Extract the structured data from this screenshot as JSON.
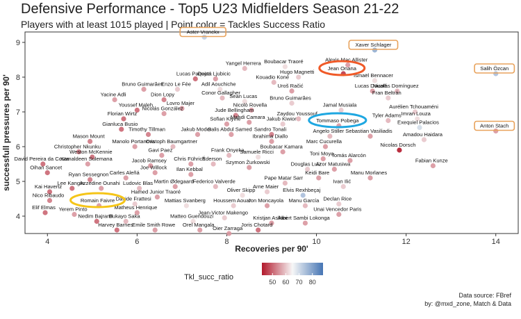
{
  "header": {
    "title": "Defensive Performance - Top5 U23 Midfielders Season 21-22",
    "subtitle": "Players with at least 1015 played | Point color = Tackles Success Ratio"
  },
  "caption": {
    "line1": "Data source: FBref",
    "line2": "by: @mxd_zone, Match & Data"
  },
  "colors": {
    "low": "#b2182b",
    "mid": "#f7f7f7",
    "high": "#4575b4",
    "orange_highlight": "#e8a25b",
    "red_circle": "#f05a28",
    "blue_circle": "#1ea7e1",
    "yellow_circle": "#f5c518"
  },
  "chart_data": {
    "type": "scatter",
    "title": "Defensive Performance - Top5 U23 Midfielders Season 21-22",
    "subtitle": "Players with at least 1015 played | Point color = Tackles Success Ratio",
    "xlabel": "Recoveries per 90'",
    "ylabel": "successfull pressures per 90'",
    "xlim": [
      3.5,
      14.5
    ],
    "ylim": [
      3.5,
      9.3
    ],
    "xticks": [
      4,
      6,
      8,
      10,
      12,
      14
    ],
    "yticks": [
      4,
      5,
      6,
      7,
      8,
      9
    ],
    "grid": false,
    "color_legend": {
      "title": "Tkl_succ_ratio",
      "ticks": [
        50,
        60,
        70,
        80
      ],
      "range": [
        42,
        88
      ],
      "position": "bottom"
    },
    "points": [
      {
        "label": "Aster Vranckx",
        "x": 7.5,
        "y": 9.15,
        "c": 72,
        "highlight": "box"
      },
      {
        "label": "Xaver Schlager",
        "x": 11.3,
        "y": 8.78,
        "c": 78,
        "highlight": "box"
      },
      {
        "label": "Alexis Mac Allister",
        "x": 10.7,
        "y": 8.35,
        "c": 55
      },
      {
        "label": "Yangel Herrera",
        "x": 8.4,
        "y": 8.25,
        "c": 58
      },
      {
        "label": "Boubacar Traoré",
        "x": 9.3,
        "y": 8.3,
        "c": 62
      },
      {
        "label": "Jean Onana",
        "x": 10.6,
        "y": 8.1,
        "c": 45,
        "highlight": "red-circle"
      },
      {
        "label": "Hugo Magnetti",
        "x": 9.6,
        "y": 8.0,
        "c": 60
      },
      {
        "label": "Ismaël Bennacer",
        "x": 11.3,
        "y": 7.9,
        "c": 62
      },
      {
        "label": "Salih Özcan",
        "x": 14.0,
        "y": 8.1,
        "c": 75,
        "highlight": "box"
      },
      {
        "label": "Lucas Paquetá",
        "x": 7.3,
        "y": 7.95,
        "c": 50
      },
      {
        "label": "Dejan Ljubicic",
        "x": 7.75,
        "y": 7.95,
        "c": 55
      },
      {
        "label": "Kouadio Koné",
        "x": 9.05,
        "y": 7.85,
        "c": 58
      },
      {
        "label": "Bruno Guimarães",
        "x": 6.15,
        "y": 7.65,
        "c": 55
      },
      {
        "label": "Enzo Le Fée",
        "x": 6.9,
        "y": 7.65,
        "c": 60
      },
      {
        "label": "Adil Aouchiche",
        "x": 7.85,
        "y": 7.65,
        "c": 62
      },
      {
        "label": "Uroš Račić",
        "x": 9.45,
        "y": 7.6,
        "c": 55
      },
      {
        "label": "Lucas Douath",
        "x": 11.25,
        "y": 7.6,
        "c": 55
      },
      {
        "label": "Nicolás Domínguez",
        "x": 11.8,
        "y": 7.6,
        "c": 58
      },
      {
        "label": "Fran Beltrán",
        "x": 11.6,
        "y": 7.4,
        "c": 60
      },
      {
        "label": "Yacine Adli",
        "x": 5.5,
        "y": 7.35,
        "c": 55
      },
      {
        "label": "Dion Lopy",
        "x": 6.6,
        "y": 7.35,
        "c": 52
      },
      {
        "label": "Conor Gallagher",
        "x": 7.9,
        "y": 7.4,
        "c": 58
      },
      {
        "label": "Sean Lucas",
        "x": 8.4,
        "y": 7.3,
        "c": 62
      },
      {
        "label": "Lovro Majer",
        "x": 7.0,
        "y": 7.1,
        "c": 55
      },
      {
        "label": "Bruno Guimarães",
        "x": 9.45,
        "y": 7.25,
        "c": 60
      },
      {
        "label": "Youssef Maleh",
        "x": 6.0,
        "y": 7.05,
        "c": 50
      },
      {
        "label": "Nicolò Rovella",
        "x": 8.55,
        "y": 7.05,
        "c": 55
      },
      {
        "label": "Jamal Musiala",
        "x": 10.55,
        "y": 7.05,
        "c": 60
      },
      {
        "label": "Jude Bellingham",
        "x": 8.2,
        "y": 6.9,
        "c": 52
      },
      {
        "label": "Aurélien Tchouaméni",
        "x": 12.2,
        "y": 7.0,
        "c": 60
      },
      {
        "label": "Florian Wirtz",
        "x": 5.7,
        "y": 6.8,
        "c": 50
      },
      {
        "label": "Nicolás González",
        "x": 6.6,
        "y": 6.95,
        "c": 55
      },
      {
        "label": "Zaydou Youssouf",
        "x": 9.6,
        "y": 6.8,
        "c": 58
      },
      {
        "label": "Tyler Adams",
        "x": 11.6,
        "y": 6.75,
        "c": 58
      },
      {
        "label": "Imran Louza",
        "x": 12.25,
        "y": 6.8,
        "c": 62
      },
      {
        "label": "Mahdi Camara",
        "x": 8.5,
        "y": 6.7,
        "c": 55
      },
      {
        "label": "Jakub Kiwior",
        "x": 9.25,
        "y": 6.65,
        "c": 60
      },
      {
        "label": "Sofian Kiyine",
        "x": 8.0,
        "y": 6.65,
        "c": 55
      },
      {
        "label": "Tommaso Pobega",
        "x": 10.5,
        "y": 6.6,
        "c": 55,
        "highlight": "blue-circle"
      },
      {
        "label": "Exequiel Palacios",
        "x": 12.3,
        "y": 6.55,
        "c": 70
      },
      {
        "label": "Anton Stach",
        "x": 14.0,
        "y": 6.45,
        "c": 55,
        "highlight": "box"
      },
      {
        "label": "Gianluca Busio",
        "x": 5.65,
        "y": 6.5,
        "c": 50
      },
      {
        "label": "Timothy Tillman",
        "x": 6.25,
        "y": 6.35,
        "c": 52
      },
      {
        "label": "Jakub Moder",
        "x": 7.35,
        "y": 6.35,
        "c": 55
      },
      {
        "label": "Salis Abdul Samed",
        "x": 8.1,
        "y": 6.35,
        "c": 55
      },
      {
        "label": "Sandro Tonali",
        "x": 9.0,
        "y": 6.35,
        "c": 52
      },
      {
        "label": "Angelo Stiller",
        "x": 10.3,
        "y": 6.3,
        "c": 58
      },
      {
        "label": "Sebastian Vasiliadis",
        "x": 11.2,
        "y": 6.3,
        "c": 55
      },
      {
        "label": "Amadou Haidara",
        "x": 12.4,
        "y": 6.2,
        "c": 60
      },
      {
        "label": "Mason Mount",
        "x": 4.95,
        "y": 6.15,
        "c": 52
      },
      {
        "label": "Ibrahima Diallo",
        "x": 9.0,
        "y": 6.15,
        "c": 55
      },
      {
        "label": "Manolo Portanova",
        "x": 5.95,
        "y": 6.0,
        "c": 55
      },
      {
        "label": "Cristoph Baumgartner",
        "x": 6.8,
        "y": 6.0,
        "c": 58
      },
      {
        "label": "Marc Cucurella",
        "x": 10.2,
        "y": 6.0,
        "c": 55
      },
      {
        "label": "Nicolas Dorsch",
        "x": 11.85,
        "y": 5.9,
        "c": 42
      },
      {
        "label": "Christopher Nkunku",
        "x": 4.7,
        "y": 5.85,
        "c": 52
      },
      {
        "label": "Boubacar Kamara",
        "x": 9.25,
        "y": 5.85,
        "c": 55
      },
      {
        "label": "Weston McKennie",
        "x": 5.0,
        "y": 5.7,
        "c": 50
      },
      {
        "label": "Gavi Paez",
        "x": 6.55,
        "y": 5.75,
        "c": 55
      },
      {
        "label": "Frank Onyeka",
        "x": 8.05,
        "y": 5.75,
        "c": 58
      },
      {
        "label": "Samuele Ricci",
        "x": 8.7,
        "y": 5.7,
        "c": 62
      },
      {
        "label": "Toni Moya",
        "x": 10.15,
        "y": 5.65,
        "c": 55
      },
      {
        "label": "Tomás Alarcón",
        "x": 10.75,
        "y": 5.6,
        "c": 55
      },
      {
        "label": "Kamaldeen Sulemana",
        "x": 4.9,
        "y": 5.5,
        "c": 55
      },
      {
        "label": "David Pereira da Costa",
        "x": 3.9,
        "y": 5.5,
        "c": 50
      },
      {
        "label": "Chris Führich",
        "x": 7.2,
        "y": 5.5,
        "c": 55
      },
      {
        "label": "Éderson",
        "x": 7.7,
        "y": 5.5,
        "c": 58
      },
      {
        "label": "Szymon Żurkowski",
        "x": 8.5,
        "y": 5.4,
        "c": 55
      },
      {
        "label": "Azor Matusiwa",
        "x": 10.4,
        "y": 5.35,
        "c": 55
      },
      {
        "label": "Fabian Kunze",
        "x": 12.6,
        "y": 5.45,
        "c": 55
      },
      {
        "label": "Jacob Ramsey",
        "x": 6.3,
        "y": 5.45,
        "c": 55
      },
      {
        "label": "Douglas Luiz",
        "x": 9.8,
        "y": 5.35,
        "c": 60
      },
      {
        "label": "Oihan Sancet",
        "x": 4.0,
        "y": 5.25,
        "c": 50
      },
      {
        "label": "Joe Willock",
        "x": 6.4,
        "y": 5.25,
        "c": 55
      },
      {
        "label": "Ilan Kebbal",
        "x": 7.2,
        "y": 5.2,
        "c": 55
      },
      {
        "label": "Ryan Sessegnon",
        "x": 4.95,
        "y": 5.05,
        "c": 52
      },
      {
        "label": "Carles Aleñá",
        "x": 5.75,
        "y": 5.1,
        "c": 55
      },
      {
        "label": "Keidi Bare",
        "x": 10.05,
        "y": 5.1,
        "c": 55
      },
      {
        "label": "Manu Morlanes",
        "x": 11.2,
        "y": 5.1,
        "c": 55
      },
      {
        "label": "Pape Matar Sarr",
        "x": 9.3,
        "y": 4.95,
        "c": 58
      },
      {
        "label": "Ivan Ilić",
        "x": 10.6,
        "y": 4.85,
        "c": 60
      },
      {
        "label": "Azzedine Ounahi",
        "x": 5.2,
        "y": 4.8,
        "c": 55
      },
      {
        "label": "Ludovic Blas",
        "x": 6.05,
        "y": 4.8,
        "c": 58
      },
      {
        "label": "Lee Kangin",
        "x": 4.55,
        "y": 4.8,
        "c": 50
      },
      {
        "label": "Martin Ødegaard",
        "x": 6.85,
        "y": 4.85,
        "c": 55
      },
      {
        "label": "Federico Valverde",
        "x": 7.75,
        "y": 4.85,
        "c": 58
      },
      {
        "label": "Arne Maier",
        "x": 8.9,
        "y": 4.7,
        "c": 60
      },
      {
        "label": "Kai Havertz",
        "x": 4.05,
        "y": 4.7,
        "c": 50
      },
      {
        "label": "Oliver Skipp",
        "x": 8.35,
        "y": 4.6,
        "c": 62
      },
      {
        "label": "Elvis Rexhbeçaj",
        "x": 9.7,
        "y": 4.6,
        "c": 75
      },
      {
        "label": "Hamed Junior Traoré",
        "x": 6.45,
        "y": 4.55,
        "c": 55
      },
      {
        "label": "Nico Ribaudo",
        "x": 4.05,
        "y": 4.45,
        "c": 52
      },
      {
        "label": "Romain Faivre",
        "x": 5.15,
        "y": 4.3,
        "c": 55,
        "highlight": "yellow-circle"
      },
      {
        "label": "Davide Frattesi",
        "x": 5.95,
        "y": 4.35,
        "c": 60
      },
      {
        "label": "Mattias Svanberg",
        "x": 7.1,
        "y": 4.3,
        "c": 62
      },
      {
        "label": "Houssem Aouar",
        "x": 8.15,
        "y": 4.3,
        "c": 60
      },
      {
        "label": "Jon Moncayola",
        "x": 8.9,
        "y": 4.3,
        "c": 55
      },
      {
        "label": "Manu García",
        "x": 9.75,
        "y": 4.3,
        "c": 58
      },
      {
        "label": "Declan Rice",
        "x": 10.5,
        "y": 4.35,
        "c": 60
      },
      {
        "label": "Elif Elmas",
        "x": 3.95,
        "y": 4.1,
        "c": 50
      },
      {
        "label": "Yerem Pinto",
        "x": 4.6,
        "y": 4.05,
        "c": 55
      },
      {
        "label": "Matheus Henrique",
        "x": 6.0,
        "y": 4.1,
        "c": 55
      },
      {
        "label": "Unai Vencedor Paris",
        "x": 10.5,
        "y": 4.05,
        "c": 55
      },
      {
        "label": "Jean-Victor Makengo",
        "x": 7.95,
        "y": 3.95,
        "c": 60
      },
      {
        "label": "Nedim Bajrami",
        "x": 5.1,
        "y": 3.85,
        "c": 50
      },
      {
        "label": "Bukayo Saka",
        "x": 5.75,
        "y": 3.85,
        "c": 58
      },
      {
        "label": "Matteo Guendouzi",
        "x": 7.25,
        "y": 3.85,
        "c": 62
      },
      {
        "label": "Kristjan Asllani",
        "x": 9.0,
        "y": 3.8,
        "c": 55
      },
      {
        "label": "Albert Sambi Lokonga",
        "x": 9.75,
        "y": 3.8,
        "c": 55
      },
      {
        "label": "Harvey Barnes",
        "x": 5.55,
        "y": 3.6,
        "c": 50
      },
      {
        "label": "Emile Smith Rowe",
        "x": 6.4,
        "y": 3.6,
        "c": 55
      },
      {
        "label": "Orel Mangala",
        "x": 7.4,
        "y": 3.6,
        "c": 55
      },
      {
        "label": "Joris Chotard",
        "x": 8.7,
        "y": 3.6,
        "c": 50
      },
      {
        "label": "Oier Zarraga",
        "x": 8.05,
        "y": 3.5,
        "c": 55
      }
    ]
  }
}
